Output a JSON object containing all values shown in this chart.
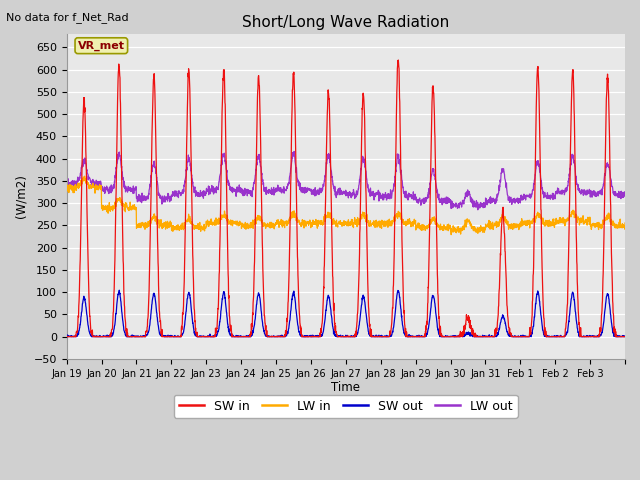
{
  "title": "Short/Long Wave Radiation",
  "top_left_text": "No data for f_Net_Rad",
  "ylabel": "(W/m2)",
  "xlabel": "Time",
  "ylim": [
    -50,
    680
  ],
  "yticks": [
    -50,
    0,
    50,
    100,
    150,
    200,
    250,
    300,
    350,
    400,
    450,
    500,
    550,
    600,
    650
  ],
  "fig_facecolor": "#d0d0d0",
  "plot_facecolor": "#e8e8e8",
  "legend_label": "VR_met",
  "series_colors": {
    "SW_in": "#ee1111",
    "LW_in": "#ffaa00",
    "SW_out": "#0000cc",
    "LW_out": "#9933cc"
  },
  "legend_entries": [
    "SW in",
    "LW in",
    "SW out",
    "LW out"
  ],
  "n_days": 16,
  "x_tick_labels": [
    "Jan 19",
    "Jan 20",
    "Jan 21",
    "Jan 22",
    "Jan 23",
    "Jan 24",
    "Jan 25",
    "Jan 26",
    "Jan 27",
    "Jan 28",
    "Jan 29",
    "Jan 30",
    "Jan 31",
    "Feb 1",
    "Feb 2",
    "Feb 3"
  ],
  "sw_in_peaks": [
    530,
    610,
    585,
    600,
    600,
    585,
    595,
    550,
    545,
    625,
    565,
    40,
    280,
    605,
    600,
    585
  ],
  "lw_in_base": [
    335,
    290,
    250,
    245,
    255,
    250,
    255,
    255,
    255,
    255,
    245,
    240,
    250,
    255,
    260,
    250
  ],
  "lw_out_base": [
    345,
    330,
    310,
    320,
    330,
    325,
    330,
    325,
    320,
    315,
    305,
    295,
    305,
    315,
    325,
    320
  ],
  "lw_out_day_bump": [
    50,
    80,
    80,
    80,
    80,
    80,
    80,
    80,
    80,
    90,
    70,
    30,
    70,
    80,
    80,
    70
  ]
}
